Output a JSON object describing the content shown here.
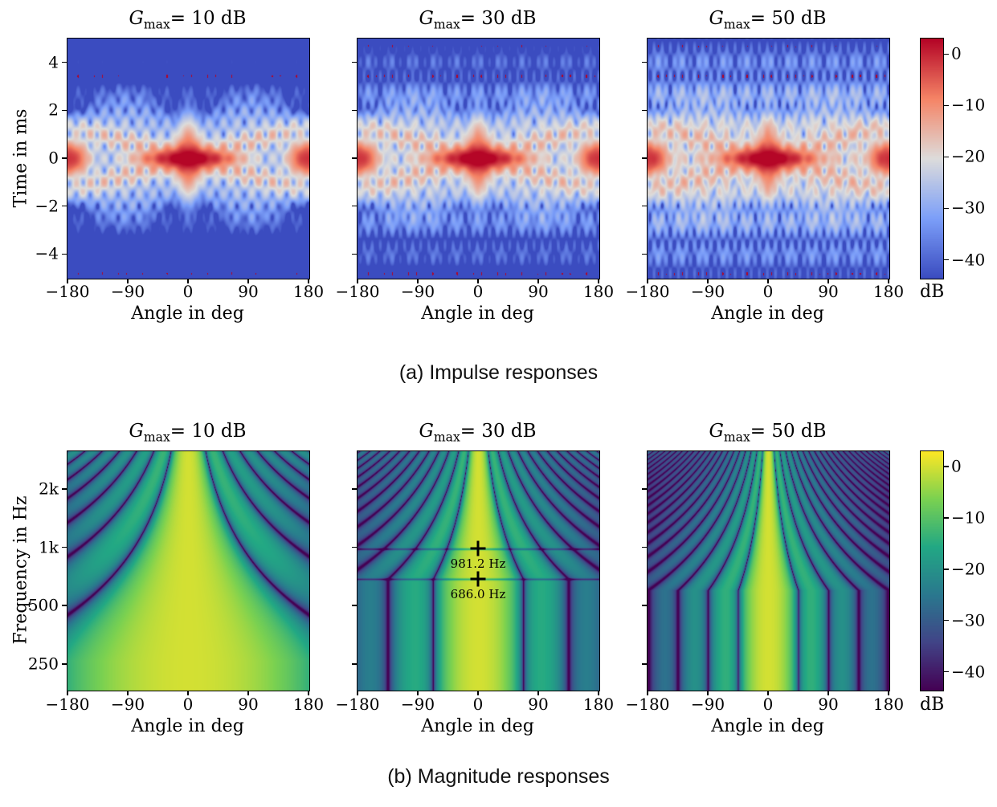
{
  "captions": {
    "a": "(a) Impulse responses",
    "b": "(b) Magnitude responses"
  },
  "colorbar": {
    "label": "dB",
    "vmax": 3,
    "vmin": -43.5,
    "ticks": [
      {
        "label": "0",
        "value": 0
      },
      {
        "label": "−10",
        "value": -10
      },
      {
        "label": "−20",
        "value": -20
      },
      {
        "label": "−30",
        "value": -30
      },
      {
        "label": "−40",
        "value": -40
      }
    ]
  },
  "rows": [
    {
      "caption_key": "a",
      "ylabel": "Time in ms",
      "xlabel": "Angle in deg",
      "colormap": "coolwarm",
      "yscale": "linear",
      "xlim": [
        -180,
        180
      ],
      "ylim": [
        -5,
        5
      ],
      "xticks": [
        {
          "label": "−180",
          "value": -180
        },
        {
          "label": "−90",
          "value": -90
        },
        {
          "label": "0",
          "value": 0
        },
        {
          "label": "90",
          "value": 90
        },
        {
          "label": "180",
          "value": 180
        }
      ],
      "yticks": [
        {
          "label": "4",
          "value": 4
        },
        {
          "label": "2",
          "value": 2
        },
        {
          "label": "0",
          "value": 0
        },
        {
          "label": "−2",
          "value": -2
        },
        {
          "label": "−4",
          "value": -4
        }
      ],
      "panels": [
        {
          "title": {
            "var": "G",
            "sub": "max",
            "rest": "= 10 dB"
          },
          "gain_db": 10
        },
        {
          "title": {
            "var": "G",
            "sub": "max",
            "rest": "= 30 dB"
          },
          "gain_db": 30
        },
        {
          "title": {
            "var": "G",
            "sub": "max",
            "rest": "= 50 dB"
          },
          "gain_db": 50
        }
      ]
    },
    {
      "caption_key": "b",
      "ylabel": "Frequency in Hz",
      "xlabel": "Angle in deg",
      "colormap": "viridis",
      "yscale": "log",
      "xlim": [
        -180,
        180
      ],
      "ylim": [
        184,
        3126
      ],
      "xticks": [
        {
          "label": "−180",
          "value": -180
        },
        {
          "label": "−90",
          "value": -90
        },
        {
          "label": "0",
          "value": 0
        },
        {
          "label": "90",
          "value": 90
        },
        {
          "label": "180",
          "value": 180
        }
      ],
      "yticks": [
        {
          "label": "2k",
          "value": 2000
        },
        {
          "label": "1k",
          "value": 1000
        },
        {
          "label": "500",
          "value": 500
        },
        {
          "label": "250",
          "value": 250
        }
      ],
      "panels": [
        {
          "title": {
            "var": "G",
            "sub": "max",
            "rest": "= 10 dB"
          },
          "gain_db": 10
        },
        {
          "title": {
            "var": "G",
            "sub": "max",
            "rest": "= 30 dB"
          },
          "gain_db": 30,
          "annotations": [
            {
              "label": "981.2 Hz",
              "angle_deg": 0,
              "frequency_hz": 981.2
            },
            {
              "label": "686.0 Hz",
              "angle_deg": 0,
              "frequency_hz": 686.0
            }
          ]
        },
        {
          "title": {
            "var": "G",
            "sub": "max",
            "rest": "= 50 dB"
          },
          "gain_db": 50
        }
      ]
    }
  ],
  "chart_data": [
    {
      "type": "heatmap",
      "group": "(a) Impulse responses",
      "panel_titles": [
        "Gmax= 10 dB",
        "Gmax= 30 dB",
        "Gmax= 50 dB"
      ],
      "xlabel": "Angle in deg",
      "ylabel": "Time in ms",
      "x_range": [
        -180,
        180
      ],
      "y_range": [
        -5,
        5
      ],
      "x_ticks": [
        -180,
        -90,
        0,
        90,
        180
      ],
      "y_ticks": [
        4,
        2,
        0,
        -2,
        -4
      ],
      "y_scale": "linear",
      "colormap": "coolwarm",
      "colorbar_label": "dB",
      "colorbar_ticks": [
        0,
        -10,
        -20,
        -30,
        -40
      ],
      "value_range_db": [
        -43.5,
        3
      ],
      "features": "Peak near 0 dB at (0 deg, 0 ms) and at (±180 deg, 0 ms); butterfly-shaped sidelobe speckle within |t|<2.5 ms; background floor below −40 dB; vertical ripple structure across all times increases with Gmax"
    },
    {
      "type": "heatmap",
      "group": "(b) Magnitude responses",
      "panel_titles": [
        "Gmax= 10 dB",
        "Gmax= 30 dB",
        "Gmax= 50 dB"
      ],
      "xlabel": "Angle in deg",
      "ylabel": "Frequency in Hz",
      "x_range": [
        -180,
        180
      ],
      "y_range": [
        184,
        3126
      ],
      "x_ticks": [
        -180,
        -90,
        0,
        90,
        180
      ],
      "y_ticks": [
        2000,
        1000,
        500,
        250
      ],
      "y_tick_labels": [
        "2k",
        "1k",
        "500",
        "250"
      ],
      "y_scale": "log",
      "colormap": "viridis",
      "colorbar_label": "dB",
      "colorbar_ticks": [
        0,
        -10,
        -20,
        -30,
        -40
      ],
      "value_range_db": [
        -43.5,
        3
      ],
      "annotations": [
        {
          "panel": "Gmax= 30 dB",
          "angle_deg": 0,
          "frequency_hz": 981.2,
          "label": "981.2 Hz",
          "marker": "+"
        },
        {
          "panel": "Gmax= 30 dB",
          "angle_deg": 0,
          "frequency_hz": 686.0,
          "label": "686.0 Hz",
          "marker": "+"
        }
      ],
      "features": "Bright ~0 dB main lobe at 0 deg whose width narrows with frequency; dark null fans curving outward toward low frequencies; number of sidelobe stripes increases with Gmax; stripes become nearly vertical below the annotated frequencies"
    }
  ]
}
